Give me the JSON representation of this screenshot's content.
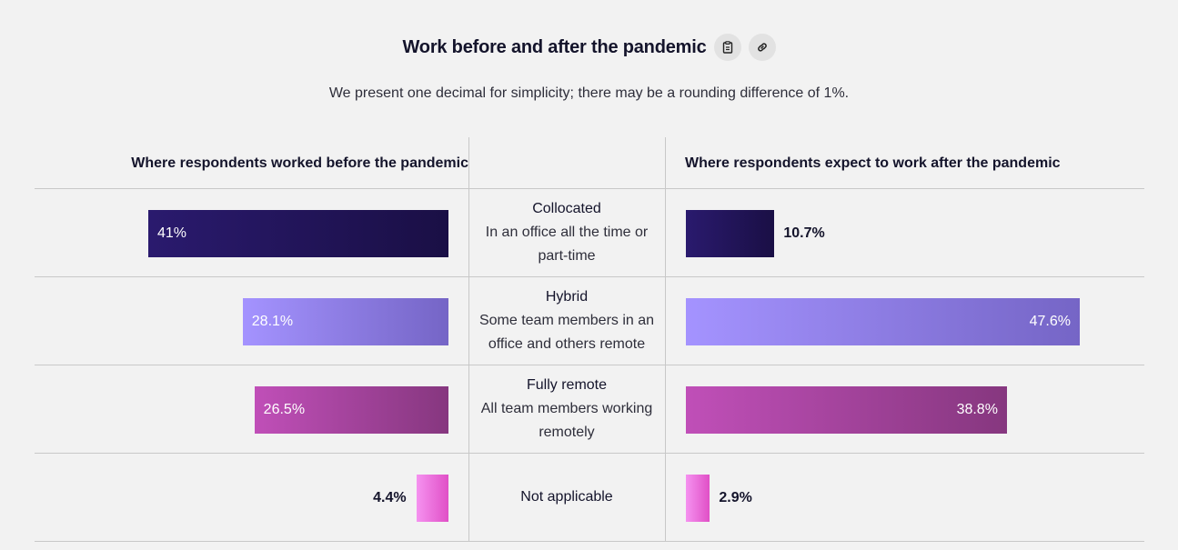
{
  "header": {
    "title": "Work before and after the pandemic",
    "subtitle": "We present one decimal for simplicity; there may be a rounding difference of 1%.",
    "icons": [
      "clipboard-icon",
      "link-icon"
    ]
  },
  "chart_data": {
    "type": "bar",
    "title": "Work before and after the pandemic",
    "subtitle": "We present one decimal for simplicity; there may be a rounding difference of 1%.",
    "left_header": "Where respondents worked before the pandemic",
    "right_header": "Where respondents expect to work after the pandemic",
    "categories": [
      {
        "name": "Collocated",
        "description": "In an office all the time or part-time"
      },
      {
        "name": "Hybrid",
        "description": "Some team members in an office and others remote"
      },
      {
        "name": "Fully remote",
        "description": "All team members working remotely"
      },
      {
        "name": "Not applicable",
        "description": ""
      }
    ],
    "series": [
      {
        "values": [
          41,
          28.1,
          26.5,
          4.4
        ],
        "labels": [
          "41%",
          "28.1%",
          "26.5%",
          "4.4%"
        ]
      },
      {
        "values": [
          10.7,
          47.6,
          38.8,
          2.9
        ],
        "labels": [
          "10.7%",
          "47.6%",
          "38.8%",
          "2.9%"
        ]
      }
    ],
    "colors": [
      [
        "#2a1a6e",
        "#1a0f45"
      ],
      [
        "#a493ff",
        "#7565c6"
      ],
      [
        "#c04fb8",
        "#86377f"
      ],
      [
        "#f592f0",
        "#e04fc6"
      ]
    ]
  }
}
